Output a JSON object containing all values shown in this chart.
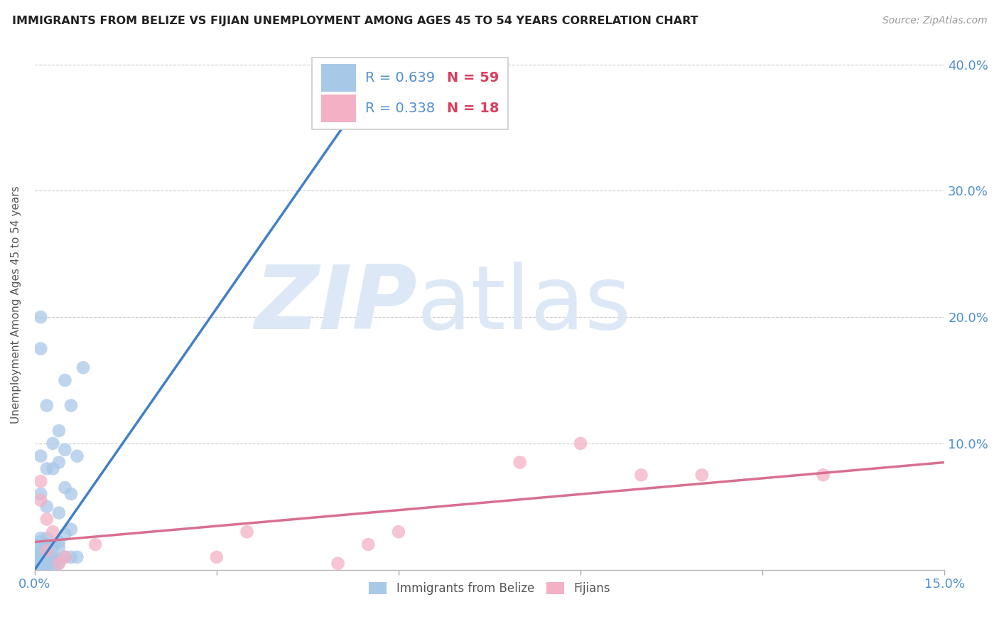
{
  "title": "IMMIGRANTS FROM BELIZE VS FIJIAN UNEMPLOYMENT AMONG AGES 45 TO 54 YEARS CORRELATION CHART",
  "source": "Source: ZipAtlas.com",
  "ylabel": "Unemployment Among Ages 45 to 54 years",
  "xlim": [
    0.0,
    0.15
  ],
  "ylim": [
    0.0,
    0.42
  ],
  "x_ticks": [
    0.0,
    0.03,
    0.06,
    0.09,
    0.12,
    0.15
  ],
  "x_tick_labels": [
    "0.0%",
    "",
    "",
    "",
    "",
    "15.0%"
  ],
  "y_ticks": [
    0.0,
    0.1,
    0.2,
    0.3,
    0.4
  ],
  "y_tick_labels_right": [
    "",
    "10.0%",
    "20.0%",
    "30.0%",
    "40.0%"
  ],
  "belize_color": "#a8c8e8",
  "belize_color_line": "#4080c8",
  "fijian_color": "#f4b0c4",
  "fijian_color_line": "#d87090",
  "belize_R": 0.639,
  "belize_N": 59,
  "fijian_R": 0.338,
  "fijian_N": 18,
  "legend_R_color": "#5090d0",
  "legend_N_color": "#d84060",
  "watermark_zip": "ZIP",
  "watermark_atlas": "atlas",
  "watermark_color": "#dce8f5",
  "belize_line_x": [
    0.0,
    0.058
  ],
  "belize_line_y": [
    0.0,
    0.4
  ],
  "fijian_line_x": [
    0.0,
    0.15
  ],
  "fijian_line_y": [
    0.022,
    0.085
  ],
  "belize_points": [
    [
      0.0,
      0.002
    ],
    [
      0.0,
      0.003
    ],
    [
      0.0,
      0.004
    ],
    [
      0.0,
      0.005
    ],
    [
      0.0,
      0.006
    ],
    [
      0.0,
      0.007
    ],
    [
      0.0,
      0.008
    ],
    [
      0.0,
      0.01
    ],
    [
      0.001,
      0.002
    ],
    [
      0.001,
      0.003
    ],
    [
      0.001,
      0.005
    ],
    [
      0.001,
      0.006
    ],
    [
      0.001,
      0.008
    ],
    [
      0.001,
      0.01
    ],
    [
      0.001,
      0.012
    ],
    [
      0.001,
      0.015
    ],
    [
      0.001,
      0.018
    ],
    [
      0.001,
      0.022
    ],
    [
      0.001,
      0.025
    ],
    [
      0.001,
      0.06
    ],
    [
      0.001,
      0.09
    ],
    [
      0.001,
      0.175
    ],
    [
      0.001,
      0.2
    ],
    [
      0.002,
      0.003
    ],
    [
      0.002,
      0.005
    ],
    [
      0.002,
      0.008
    ],
    [
      0.002,
      0.01
    ],
    [
      0.002,
      0.015
    ],
    [
      0.002,
      0.02
    ],
    [
      0.002,
      0.025
    ],
    [
      0.002,
      0.05
    ],
    [
      0.002,
      0.08
    ],
    [
      0.002,
      0.13
    ],
    [
      0.003,
      0.003
    ],
    [
      0.003,
      0.005
    ],
    [
      0.003,
      0.008
    ],
    [
      0.003,
      0.01
    ],
    [
      0.003,
      0.018
    ],
    [
      0.003,
      0.08
    ],
    [
      0.003,
      0.1
    ],
    [
      0.004,
      0.005
    ],
    [
      0.004,
      0.008
    ],
    [
      0.004,
      0.018
    ],
    [
      0.004,
      0.022
    ],
    [
      0.004,
      0.045
    ],
    [
      0.004,
      0.085
    ],
    [
      0.004,
      0.11
    ],
    [
      0.005,
      0.01
    ],
    [
      0.005,
      0.028
    ],
    [
      0.005,
      0.065
    ],
    [
      0.005,
      0.095
    ],
    [
      0.005,
      0.15
    ],
    [
      0.006,
      0.01
    ],
    [
      0.006,
      0.032
    ],
    [
      0.006,
      0.06
    ],
    [
      0.006,
      0.13
    ],
    [
      0.007,
      0.01
    ],
    [
      0.007,
      0.09
    ],
    [
      0.008,
      0.16
    ]
  ],
  "fijian_points": [
    [
      0.001,
      0.055
    ],
    [
      0.001,
      0.07
    ],
    [
      0.002,
      0.015
    ],
    [
      0.002,
      0.04
    ],
    [
      0.003,
      0.03
    ],
    [
      0.004,
      0.005
    ],
    [
      0.005,
      0.01
    ],
    [
      0.01,
      0.02
    ],
    [
      0.03,
      0.01
    ],
    [
      0.035,
      0.03
    ],
    [
      0.05,
      0.005
    ],
    [
      0.055,
      0.02
    ],
    [
      0.06,
      0.03
    ],
    [
      0.08,
      0.085
    ],
    [
      0.09,
      0.1
    ],
    [
      0.1,
      0.075
    ],
    [
      0.11,
      0.075
    ],
    [
      0.13,
      0.075
    ]
  ]
}
